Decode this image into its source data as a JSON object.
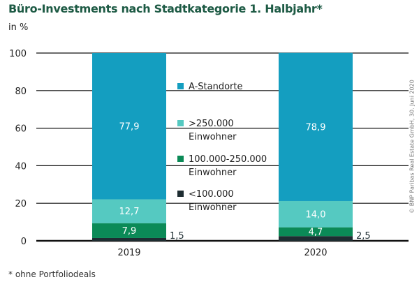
{
  "chart_data": {
    "type": "bar",
    "stacked": true,
    "title": "Büro-Investments nach Stadtkategorie 1. Halbjahr*",
    "ylabel": "in %",
    "ylim": [
      0,
      100
    ],
    "yticks": [
      0,
      20,
      40,
      60,
      80,
      100
    ],
    "grid": true,
    "legend_position": "center",
    "categories": [
      "2019",
      "2020"
    ],
    "series": [
      {
        "name": "<100.000 Einwohner",
        "values": [
          1.5,
          2.5
        ],
        "labels": [
          "1,5",
          "2,5"
        ],
        "color": "#1e2d32"
      },
      {
        "name": "100.000-250.000 Einwohner",
        "values": [
          7.9,
          4.7
        ],
        "labels": [
          "7,9",
          "4,7"
        ],
        "color": "#0b8a57"
      },
      {
        "name": ">250.000 Einwohner",
        "values": [
          12.7,
          14.0
        ],
        "labels": [
          "12,7",
          "14,0"
        ],
        "color": "#55c9c1"
      },
      {
        "name": "A-Standorte",
        "values": [
          77.9,
          78.9
        ],
        "labels": [
          "77,9",
          "78,9"
        ],
        "color": "#149ec0"
      }
    ],
    "legend": [
      {
        "line1": "A-Standorte",
        "line2": "",
        "color": "#149ec0"
      },
      {
        "line1": ">250.000",
        "line2": "Einwohner",
        "color": "#55c9c1"
      },
      {
        "line1": "100.000-250.000",
        "line2": "Einwohner",
        "color": "#0b8a57"
      },
      {
        "line1": "<100.000",
        "line2": "Einwohner",
        "color": "#1e2d32"
      }
    ],
    "footnote": "* ohne Portfoliodeals",
    "source": "© BNP Paribas Real Estate GmbH, 30. Juni 2020"
  }
}
